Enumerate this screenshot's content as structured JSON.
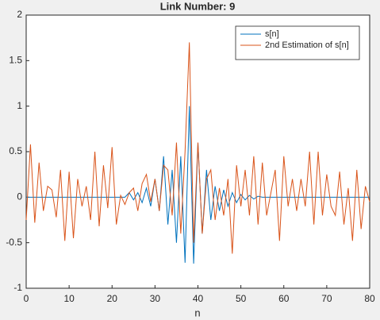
{
  "chart_data": {
    "type": "line",
    "title": "Link Number: 9",
    "x_label": "n",
    "x": [
      0,
      1,
      2,
      3,
      4,
      5,
      6,
      7,
      8,
      9,
      10,
      11,
      12,
      13,
      14,
      15,
      16,
      17,
      18,
      19,
      20,
      21,
      22,
      23,
      24,
      25,
      26,
      27,
      28,
      29,
      30,
      31,
      32,
      33,
      34,
      35,
      36,
      37,
      38,
      39,
      40,
      41,
      42,
      43,
      44,
      45,
      46,
      47,
      48,
      49,
      50,
      51,
      52,
      53,
      54,
      55,
      56,
      57,
      58,
      59,
      60,
      61,
      62,
      63,
      64,
      65,
      66,
      67,
      68,
      69,
      70,
      71,
      72,
      73,
      74,
      75,
      76,
      77,
      78,
      79,
      80
    ],
    "series": [
      {
        "name": "s[n]",
        "color": "#0072bd",
        "values": [
          0,
          0,
          0,
          0,
          0,
          0,
          0,
          0,
          0,
          0,
          0,
          0,
          0,
          0,
          0,
          0,
          0,
          0,
          0,
          0,
          0,
          0,
          0,
          0,
          0.05,
          -0.03,
          0.05,
          -0.06,
          0.1,
          -0.1,
          0.2,
          -0.15,
          0.45,
          -0.3,
          0.3,
          -0.5,
          0.45,
          -0.72,
          1.0,
          -0.73,
          0.6,
          -0.4,
          0.3,
          -0.25,
          0.12,
          -0.15,
          0.08,
          -0.1,
          0.05,
          -0.06,
          0.03,
          -0.03,
          0.02,
          -0.02,
          0.01,
          0,
          0,
          0,
          0,
          0,
          0,
          0,
          0,
          0,
          0,
          0,
          0,
          0,
          0,
          0,
          0,
          0,
          0,
          0,
          0,
          0,
          0,
          0,
          0,
          0,
          0
        ]
      },
      {
        "name": "2nd Estimation of s[n]",
        "color": "#d95319",
        "values": [
          -0.25,
          0.58,
          -0.28,
          0.38,
          -0.15,
          0.12,
          0.08,
          -0.22,
          0.3,
          -0.48,
          0.28,
          -0.45,
          0.2,
          -0.1,
          0.12,
          -0.25,
          0.5,
          -0.32,
          0.35,
          -0.12,
          0.55,
          -0.3,
          0.02,
          -0.08,
          0.05,
          0.1,
          -0.15,
          0.15,
          0.25,
          -0.05,
          0.2,
          -0.15,
          0.35,
          0.3,
          -0.2,
          0.6,
          -0.4,
          0.5,
          1.7,
          -0.5,
          0.6,
          -0.4,
          0.2,
          0.3,
          -0.25,
          0.1,
          -0.2,
          0.2,
          -0.62,
          0.35,
          -0.1,
          0.3,
          -0.2,
          0.45,
          -0.3,
          0.38,
          -0.2,
          0.05,
          0.3,
          -0.48,
          0.45,
          -0.1,
          0.2,
          -0.15,
          0.2,
          -0.1,
          0.5,
          -0.3,
          0.5,
          -0.2,
          0.25,
          -0.1,
          -0.2,
          0.28,
          -0.3,
          0.1,
          -0.48,
          0.3,
          -0.35,
          0.12,
          -0.05
        ]
      }
    ],
    "xlim": [
      0,
      80
    ],
    "xticks": [
      0,
      10,
      20,
      30,
      40,
      50,
      60,
      70,
      80
    ],
    "ylim": [
      -1,
      2
    ],
    "yticks": [
      -1,
      -0.5,
      0,
      0.5,
      1,
      1.5,
      2
    ],
    "legend": "top-right"
  }
}
